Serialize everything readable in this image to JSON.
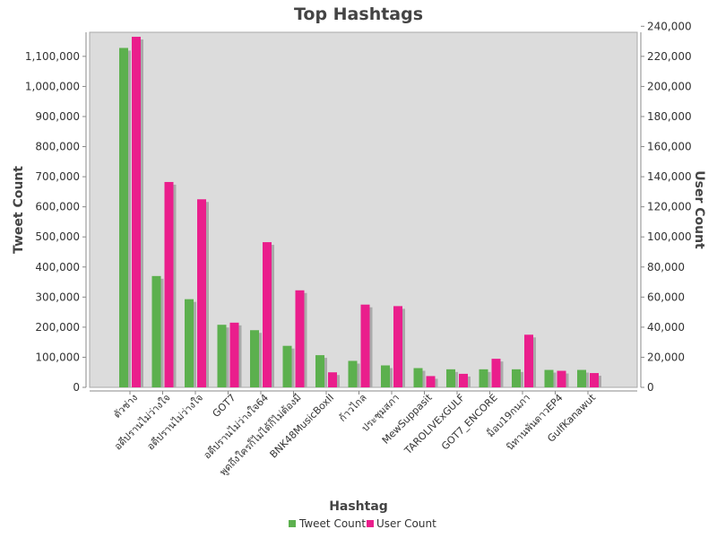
{
  "chart_data": {
    "type": "bar",
    "title": "Top Hashtags",
    "xlabel": "Hashtag",
    "ylabel_left": "Tweet Count",
    "ylabel_right": "User Count",
    "categories": [
      "ตัวช่าง",
      "อดีปรานไม่ว่างใจ",
      "อดีปรานไม่ว่างใจ",
      "GOT7",
      "อดีปรานไม่ว่างใจ64",
      "พูดถึงใครก็ไม่ได้ก็ไม่ต้องมี",
      "BNK48MusicBoxII",
      "ก้าวไกล",
      "ประชุมสภา",
      "MewSuppasit",
      "TAROLIVExGULF",
      "GOT7_ENCORE",
      "ม็อบ19กนภา",
      "นิทานพันดาวEP4",
      "GulfKanawut"
    ],
    "series": [
      {
        "name": "Tweet Count",
        "axis": "left",
        "color": "#5cb04e",
        "values": [
          1128000,
          370000,
          293000,
          208000,
          190000,
          138000,
          107000,
          88000,
          73000,
          64000,
          60000,
          60000,
          60000,
          58000,
          58000
        ]
      },
      {
        "name": "User Count",
        "axis": "right",
        "color": "#ea1e8c",
        "values": [
          233000,
          136500,
          125000,
          43000,
          96500,
          64500,
          10000,
          55000,
          54000,
          7500,
          9000,
          19000,
          35000,
          11000,
          9500
        ]
      }
    ],
    "ylim_left": [
      0,
      1180000
    ],
    "ylim_right": [
      0,
      236000
    ],
    "yticks_left": [
      0,
      100000,
      200000,
      300000,
      400000,
      500000,
      600000,
      700000,
      800000,
      900000,
      1000000,
      1100000
    ],
    "yticks_left_labels": [
      "0",
      "100,000",
      "200,000",
      "300,000",
      "400,000",
      "500,000",
      "600,000",
      "700,000",
      "800,000",
      "900,000",
      "1,000,000",
      "1,100,000"
    ],
    "yticks_right": [
      0,
      20000,
      40000,
      60000,
      80000,
      100000,
      120000,
      140000,
      160000,
      180000,
      200000,
      220000,
      240000
    ],
    "yticks_right_labels": [
      "0",
      "20,000",
      "40,000",
      "60,000",
      "80,000",
      "100,000",
      "120,000",
      "140,000",
      "160,000",
      "180,000",
      "200,000",
      "220,000",
      "240,000"
    ],
    "grid": false,
    "legend": "bottom",
    "plot_background": "#dcdcdc"
  }
}
